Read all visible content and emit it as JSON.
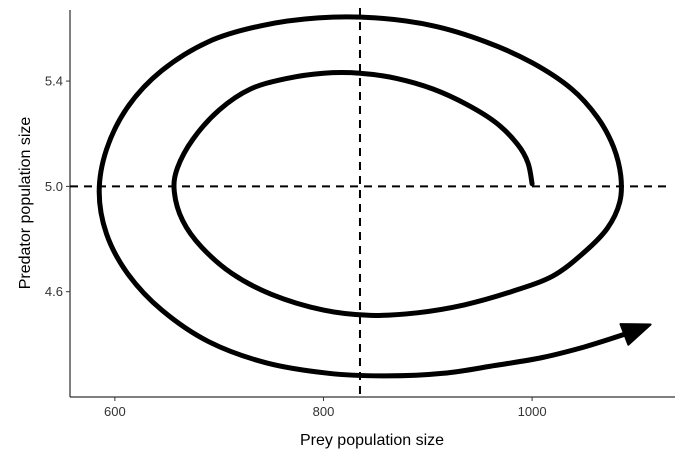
{
  "chart_data": {
    "type": "line",
    "title": "",
    "xlabel": "Prey population size",
    "ylabel": "Predator population size",
    "xlim": [
      557,
      1137
    ],
    "ylim": [
      4.2,
      5.67
    ],
    "xticks": [
      600,
      800,
      1000
    ],
    "xtick_labels": [
      "600",
      "800",
      "1000"
    ],
    "yticks": [
      4.6,
      5.0,
      5.4
    ],
    "ytick_labels": [
      "4.6",
      "5.0",
      "5.4"
    ],
    "grid": false,
    "legend": "none",
    "reference_lines": {
      "x": 835,
      "y": 5.0,
      "style": "dashed"
    },
    "arrow_at_end": true,
    "series": [
      {
        "values": [
          [
            1000,
            5.01
          ],
          [
            996,
            5.09
          ],
          [
            986,
            5.16
          ],
          [
            966,
            5.24
          ],
          [
            938,
            5.31
          ],
          [
            905,
            5.37
          ],
          [
            870,
            5.41
          ],
          [
            835,
            5.43
          ],
          [
            800,
            5.43
          ],
          [
            765,
            5.41
          ],
          [
            730,
            5.37
          ],
          [
            700,
            5.29
          ],
          [
            675,
            5.18
          ],
          [
            660,
            5.07
          ],
          [
            657,
            4.98
          ],
          [
            665,
            4.87
          ],
          [
            683,
            4.77
          ],
          [
            712,
            4.67
          ],
          [
            750,
            4.59
          ],
          [
            800,
            4.53
          ],
          [
            845,
            4.51
          ],
          [
            890,
            4.52
          ],
          [
            935,
            4.55
          ],
          [
            980,
            4.6
          ],
          [
            1020,
            4.66
          ],
          [
            1050,
            4.75
          ],
          [
            1072,
            4.84
          ],
          [
            1084,
            4.94
          ],
          [
            1085,
            5.04
          ],
          [
            1078,
            5.15
          ],
          [
            1063,
            5.26
          ],
          [
            1038,
            5.37
          ],
          [
            1000,
            5.47
          ],
          [
            955,
            5.55
          ],
          [
            905,
            5.61
          ],
          [
            850,
            5.64
          ],
          [
            795,
            5.64
          ],
          [
            740,
            5.61
          ],
          [
            690,
            5.55
          ],
          [
            645,
            5.44
          ],
          [
            612,
            5.3
          ],
          [
            592,
            5.14
          ],
          [
            585,
            4.98
          ],
          [
            592,
            4.82
          ],
          [
            612,
            4.67
          ],
          [
            645,
            4.53
          ],
          [
            690,
            4.41
          ],
          [
            745,
            4.33
          ],
          [
            805,
            4.29
          ],
          [
            860,
            4.28
          ],
          [
            915,
            4.29
          ],
          [
            965,
            4.32
          ],
          [
            1010,
            4.35
          ],
          [
            1050,
            4.39
          ],
          [
            1090,
            4.44
          ],
          [
            1110,
            4.47
          ]
        ]
      }
    ]
  }
}
